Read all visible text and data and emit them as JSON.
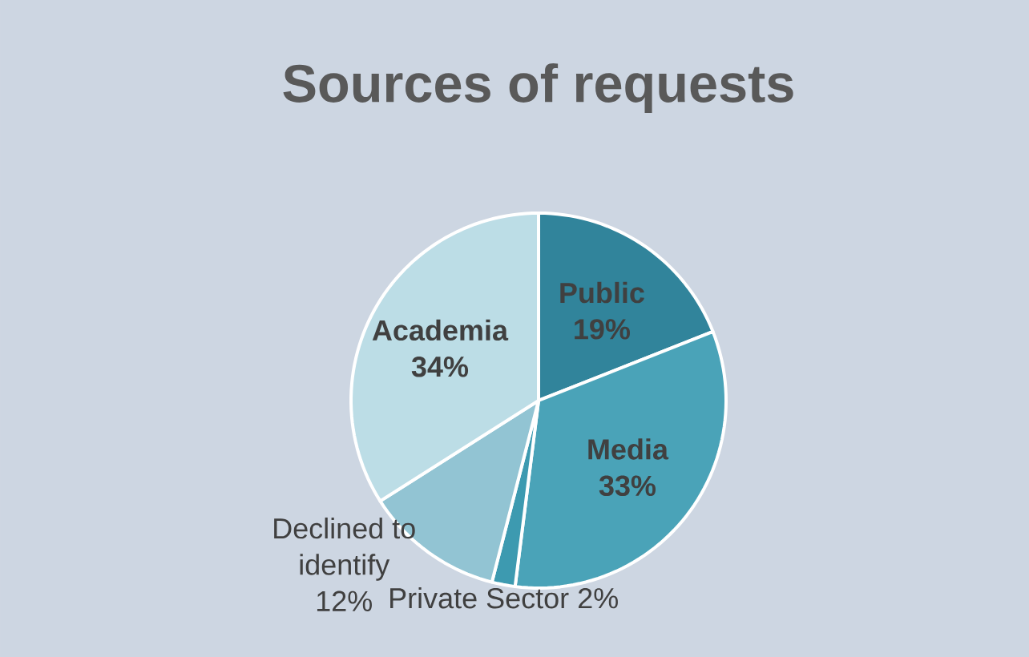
{
  "chart_data": {
    "type": "pie",
    "title": "Sources of requests",
    "categories": [
      "Public",
      "Media",
      "Private Sector",
      "Declined to identify",
      "Academia"
    ],
    "values": [
      19,
      33,
      2,
      12,
      34
    ],
    "value_labels": [
      "19%",
      "33%",
      "2%",
      "12%",
      "34%"
    ],
    "colors": [
      "#31849b",
      "#4aa3b8",
      "#3d9ab0",
      "#92c4d3",
      "#bcdde6"
    ]
  }
}
